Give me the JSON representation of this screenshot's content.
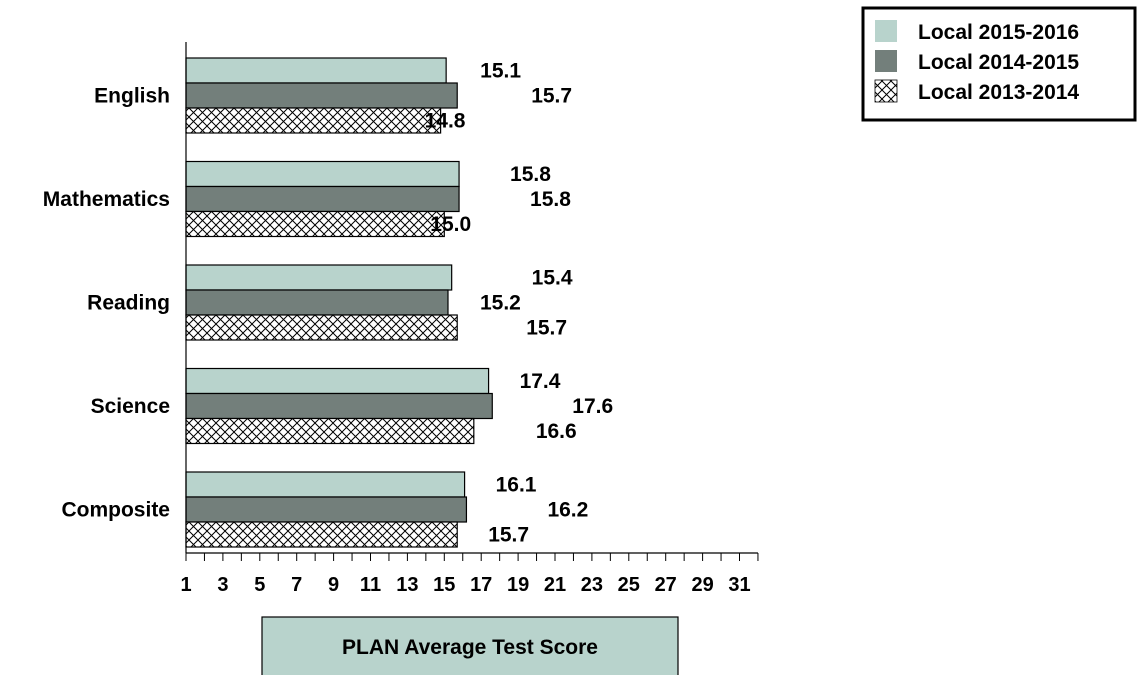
{
  "chart_data": {
    "type": "bar",
    "orientation": "horizontal",
    "categories": [
      "English",
      "Mathematics",
      "Reading",
      "Science",
      "Composite"
    ],
    "series": [
      {
        "name": "Local 2015-2016",
        "values": [
          15.1,
          15.8,
          15.4,
          17.4,
          16.1
        ],
        "color": "#b8d3cc",
        "pattern": "solid"
      },
      {
        "name": "Local 2014-2015",
        "values": [
          15.7,
          15.8,
          15.2,
          17.6,
          16.2
        ],
        "color": "#737f7b",
        "pattern": "solid"
      },
      {
        "name": "Local 2013-2014",
        "values": [
          14.8,
          15.0,
          15.7,
          16.6,
          15.7
        ],
        "color": "#ffffff",
        "pattern": "crosshatch"
      }
    ],
    "data_labels": [
      [
        "15.1",
        "15.7",
        "14.8"
      ],
      [
        "15.8",
        "15.8",
        "15.0"
      ],
      [
        "15.4",
        "15.2",
        "15.7"
      ],
      [
        "17.4",
        "17.6",
        "16.6"
      ],
      [
        "16.1",
        "16.2",
        "15.7"
      ]
    ],
    "xlabel": "PLAN Average Test Score",
    "xlim": [
      1,
      32
    ],
    "xticks": [
      1,
      3,
      5,
      7,
      9,
      11,
      13,
      15,
      17,
      19,
      21,
      23,
      25,
      27,
      29,
      31
    ],
    "xtick_labels": [
      "1",
      "3",
      "5",
      "7",
      "9",
      "11",
      "13",
      "15",
      "17",
      "19",
      "21",
      "23",
      "25",
      "27",
      "29",
      "31"
    ],
    "grid": false,
    "legend_position": "top-right"
  }
}
